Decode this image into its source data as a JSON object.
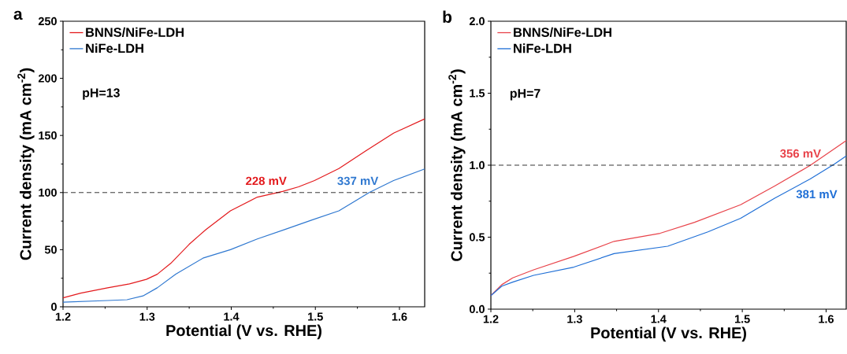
{
  "chart_data": [
    {
      "type": "line",
      "title": "a",
      "xlabel": "Potential (V vs. RHE)",
      "ylabel": "Current density (mA cm$^{-2}$)",
      "xlim": [
        1.2,
        1.63
      ],
      "ylim": [
        0,
        250
      ],
      "xticks": [
        1.2,
        1.3,
        1.4,
        1.5,
        1.6
      ],
      "yticks": [
        0,
        50,
        100,
        150,
        200,
        250
      ],
      "legend": "top left",
      "ref_lines": [
        {
          "axis": "y",
          "value": 100,
          "color": "#000000",
          "line_style": "dashed"
        }
      ],
      "annotations": [
        {
          "text": "228 mV",
          "x": 1.458,
          "y": 100
        },
        {
          "text": "337 mV",
          "x": 1.567,
          "y": 100
        },
        "pH=13"
      ],
      "series": [
        {
          "name": "BNNS/NiFe-LDH",
          "color": "#e3191c",
          "x": [
            1.2,
            1.221,
            1.253,
            1.279,
            1.299,
            1.312,
            1.328,
            1.35,
            1.37,
            1.399,
            1.431,
            1.461,
            1.48,
            1.499,
            1.528,
            1.56,
            1.593,
            1.63
          ],
          "values": [
            7.8,
            12,
            16.6,
            20,
            24,
            28.5,
            38,
            54.7,
            67.7,
            84,
            96,
            101,
            105,
            110.5,
            121,
            136.6,
            152,
            164.5
          ]
        },
        {
          "name": "NiFe-LDH",
          "color": "#2f78d0",
          "x": [
            1.2,
            1.253,
            1.276,
            1.295,
            1.312,
            1.334,
            1.367,
            1.399,
            1.431,
            1.464,
            1.496,
            1.528,
            1.564,
            1.593,
            1.63
          ],
          "values": [
            4,
            5.5,
            6.2,
            9.5,
            16.6,
            28.5,
            42.8,
            50,
            59.4,
            67.7,
            76,
            84,
            100,
            110.5,
            120.7
          ]
        }
      ]
    },
    {
      "type": "line",
      "title": "b",
      "xlabel": "Potential (V vs. RHE)",
      "ylabel": "Current density (mA cm$^{-2}$)",
      "xlim": [
        1.2,
        1.624
      ],
      "ylim": [
        0,
        2.0
      ],
      "xticks": [
        1.2,
        1.3,
        1.4,
        1.5,
        1.6
      ],
      "yticks": [
        {
          "value": 0,
          "label": "0.0"
        },
        0.5,
        {
          "value": 1,
          "label": "1.0"
        },
        1.5,
        {
          "value": 2,
          "label": "2.0"
        }
      ],
      "legend": "top left",
      "ref_lines": [
        {
          "axis": "y",
          "value": 1.0,
          "color": "#000000",
          "line_style": "dashed"
        }
      ],
      "annotations": [
        {
          "text": "356 mV",
          "x": 1.586,
          "y": 1.0
        },
        {
          "text": "381 mV",
          "x": 1.611,
          "y": 1.0
        },
        "pH=7"
      ],
      "series": [
        {
          "name": "BNNS/NiFe-LDH",
          "color": "#e8434a",
          "x": [
            1.2,
            1.213,
            1.226,
            1.251,
            1.299,
            1.347,
            1.402,
            1.443,
            1.498,
            1.539,
            1.581,
            1.624
          ],
          "values": [
            0.094,
            0.17,
            0.217,
            0.273,
            0.367,
            0.471,
            0.527,
            0.603,
            0.725,
            0.857,
            0.998,
            1.171
          ]
        },
        {
          "name": "NiFe-LDH",
          "color": "#1f6fd6",
          "x": [
            1.2,
            1.213,
            1.226,
            1.251,
            1.299,
            1.347,
            1.411,
            1.459,
            1.498,
            1.539,
            1.581,
            1.61,
            1.624
          ],
          "values": [
            0.094,
            0.16,
            0.188,
            0.235,
            0.292,
            0.386,
            0.437,
            0.537,
            0.631,
            0.772,
            0.904,
            1.008,
            1.064
          ]
        }
      ]
    }
  ]
}
